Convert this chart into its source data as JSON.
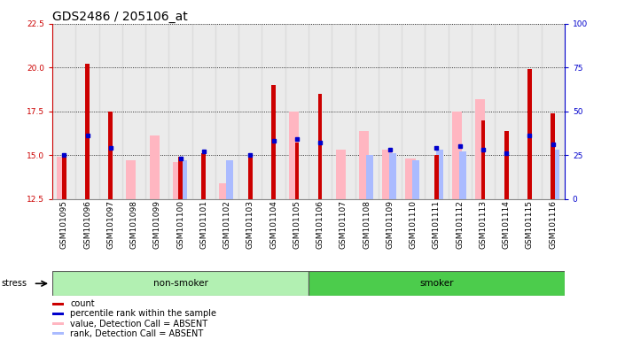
{
  "title": "GDS2486 / 205106_at",
  "samples": [
    "GSM101095",
    "GSM101096",
    "GSM101097",
    "GSM101098",
    "GSM101099",
    "GSM101100",
    "GSM101101",
    "GSM101102",
    "GSM101103",
    "GSM101104",
    "GSM101105",
    "GSM101106",
    "GSM101107",
    "GSM101108",
    "GSM101109",
    "GSM101110",
    "GSM101111",
    "GSM101112",
    "GSM101113",
    "GSM101114",
    "GSM101115",
    "GSM101116"
  ],
  "red_values": [
    15.0,
    20.2,
    17.5,
    12.5,
    12.5,
    14.9,
    15.1,
    12.5,
    14.9,
    19.0,
    15.7,
    18.5,
    12.5,
    12.5,
    12.5,
    12.5,
    15.0,
    12.5,
    17.0,
    16.4,
    19.9,
    17.4
  ],
  "pink_top": [
    14.9,
    12.5,
    12.5,
    14.7,
    16.1,
    14.6,
    12.5,
    13.4,
    12.5,
    12.5,
    17.5,
    12.5,
    15.3,
    16.4,
    15.3,
    14.8,
    12.5,
    17.5,
    18.2,
    12.5,
    12.5,
    12.5
  ],
  "blue_values": [
    15.0,
    16.1,
    15.4,
    12.5,
    12.5,
    14.8,
    15.2,
    12.5,
    15.0,
    15.8,
    15.9,
    15.7,
    12.5,
    12.5,
    15.3,
    12.5,
    15.4,
    15.5,
    15.3,
    15.1,
    16.1,
    15.6
  ],
  "light_blue_values": [
    12.5,
    12.5,
    12.5,
    12.5,
    12.5,
    14.7,
    12.5,
    14.7,
    12.5,
    12.5,
    12.5,
    12.5,
    12.5,
    15.0,
    15.1,
    14.7,
    15.3,
    15.2,
    12.5,
    12.5,
    12.5,
    15.3
  ],
  "ylim": [
    12.5,
    22.5
  ],
  "yticks_left": [
    12.5,
    15.0,
    17.5,
    20.0,
    22.5
  ],
  "yticks_right": [
    0,
    25,
    50,
    75,
    100
  ],
  "group_boundary": 11,
  "groups": [
    "non-smoker",
    "smoker"
  ],
  "group_color_light": "#b2f0b2",
  "group_color_dark": "#4ccc4c",
  "stress_label": "stress",
  "legend_items": [
    {
      "label": "count",
      "color": "#cc0000"
    },
    {
      "label": "percentile rank within the sample",
      "color": "#0000cc"
    },
    {
      "label": "value, Detection Call = ABSENT",
      "color": "#ffb6c1"
    },
    {
      "label": "rank, Detection Call = ABSENT",
      "color": "#aabbff"
    }
  ],
  "title_fontsize": 10,
  "tick_fontsize": 6.5,
  "axis_color_left": "#cc0000",
  "axis_color_right": "#0000cc"
}
